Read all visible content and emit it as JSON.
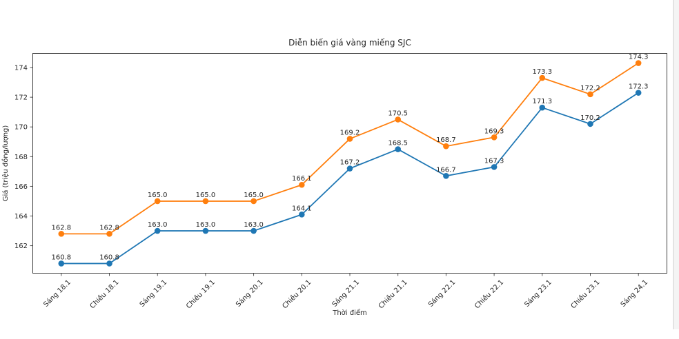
{
  "chart_data": {
    "type": "line",
    "title": "Diễn biến giá vàng miếng SJC",
    "xlabel": "Thời điểm",
    "ylabel": "Giá (triệu đồng/lượng)",
    "categories": [
      "Sáng 18.1",
      "Chiều 18.1",
      "Sáng 19.1",
      "Chiều 19.1",
      "Sáng 20.1",
      "Chiều 20.1",
      "Sáng 21.1",
      "Chiều 21.1",
      "Sáng 22.1",
      "Chiều 22.1",
      "Sáng 23.1",
      "Chiều 23.1",
      "Sáng 24.1"
    ],
    "series": [
      {
        "name": "series-blue",
        "color": "#1f77b4",
        "values": [
          160.8,
          160.8,
          163.0,
          163.0,
          163.0,
          164.1,
          167.2,
          168.5,
          166.7,
          167.3,
          171.3,
          170.2,
          172.3
        ]
      },
      {
        "name": "series-orange",
        "color": "#ff7f0e",
        "values": [
          162.8,
          162.8,
          165.0,
          165.0,
          165.0,
          166.1,
          169.2,
          170.5,
          168.7,
          169.3,
          173.3,
          172.2,
          174.3
        ]
      }
    ],
    "yticks": [
      162,
      164,
      166,
      168,
      170,
      172,
      174
    ],
    "ylim": [
      160.125,
      174.975
    ],
    "xlim": [
      -0.6,
      12.6
    ],
    "grid": false,
    "legend": "none",
    "data_labels": true,
    "label_decimals": 1,
    "marker": "circle",
    "axis_color": "#3d3d3d",
    "text_color": "#262626"
  }
}
